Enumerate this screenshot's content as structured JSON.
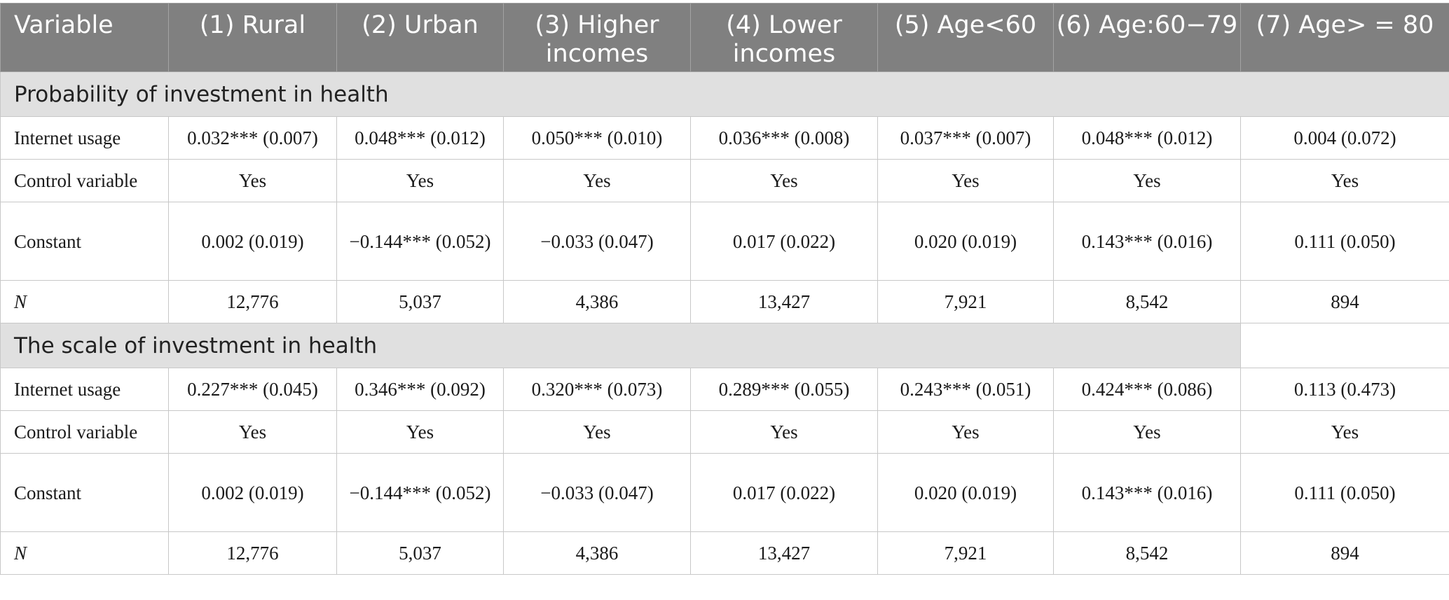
{
  "header": [
    "Variable",
    "(1) Rural",
    "(2) Urban",
    "(3) Higher incomes",
    "(4) Lower incomes",
    "(5) Age<60",
    "(6) Age:60−79",
    "(7) Age> = 80"
  ],
  "sections": [
    {
      "title": "Probability of investment in health",
      "internet_usage": {
        "label": "Internet usage",
        "values": [
          "0.032*** (0.007)",
          "0.048*** (0.012)",
          "0.050*** (0.010)",
          "0.036*** (0.008)",
          "0.037*** (0.007)",
          "0.048*** (0.012)",
          "0.004 (0.072)"
        ]
      },
      "control": {
        "label": "Control variable",
        "values": [
          "Yes",
          "Yes",
          "Yes",
          "Yes",
          "Yes",
          "Yes",
          "Yes"
        ]
      },
      "constant": {
        "label": "Constant",
        "values": [
          "0.002 (0.019)",
          "−0.144*** (0.052)",
          "−0.033 (0.047)",
          "0.017 (0.022)",
          "0.020 (0.019)",
          "0.143*** (0.016)",
          "0.111 (0.050)"
        ]
      },
      "n": {
        "label": "N",
        "values": [
          "12,776",
          "5,037",
          "4,386",
          "13,427",
          "7,921",
          "8,542",
          "894"
        ]
      }
    },
    {
      "title": "The scale of investment in health",
      "internet_usage": {
        "label": "Internet usage",
        "values": [
          "0.227*** (0.045)",
          "0.346*** (0.092)",
          "0.320*** (0.073)",
          "0.289*** (0.055)",
          "0.243*** (0.051)",
          "0.424*** (0.086)",
          "0.113 (0.473)"
        ]
      },
      "control": {
        "label": "Control variable",
        "values": [
          "Yes",
          "Yes",
          "Yes",
          "Yes",
          "Yes",
          "Yes",
          "Yes"
        ]
      },
      "constant": {
        "label": "Constant",
        "values": [
          "0.002 (0.019)",
          "−0.144*** (0.052)",
          "−0.033 (0.047)",
          "0.017 (0.022)",
          "0.020 (0.019)",
          "0.143*** (0.016)",
          "0.111 (0.050)"
        ]
      },
      "n": {
        "label": "N",
        "values": [
          "12,776",
          "5,037",
          "4,386",
          "13,427",
          "7,921",
          "8,542",
          "894"
        ]
      }
    }
  ]
}
